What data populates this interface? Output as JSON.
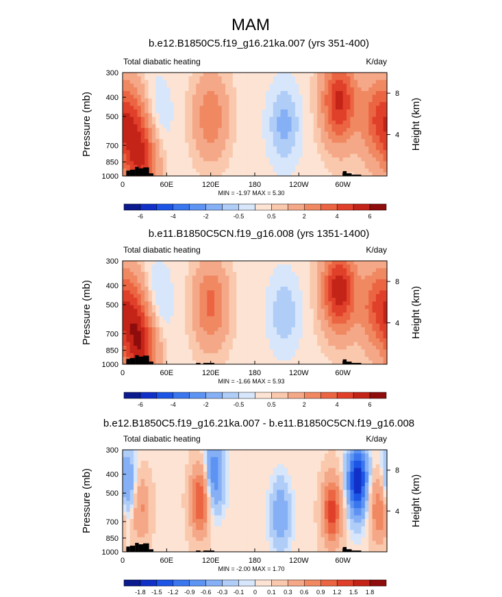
{
  "figure_title": "MAM",
  "chart_data": [
    {
      "type": "contour",
      "title": "b.e12.B1850C5.f19_g16.21ka.007 (yrs 351-400)",
      "left_label": "Total diabatic heating",
      "right_label": "K/day",
      "ylabel": "Pressure (mb)",
      "ylabel_right": "Height (km)",
      "x_ticks": [
        "0",
        "60E",
        "120E",
        "180",
        "120W",
        "60W"
      ],
      "x_tick_values": [
        0,
        60,
        120,
        180,
        240,
        300
      ],
      "xlim": [
        0,
        360
      ],
      "y_ticks": [
        "300",
        "400",
        "500",
        "700",
        "850",
        "1000"
      ],
      "y_tick_values": [
        300,
        400,
        500,
        700,
        850,
        1000
      ],
      "ylim": [
        1000,
        300
      ],
      "right_ticks": [
        "8",
        "4"
      ],
      "right_tick_values": [
        8,
        4
      ],
      "stats": "MIN = -1.97  MAX =  5.30",
      "colorbar_labels": [
        "-6",
        "-4",
        "-2",
        "-0.5",
        "0.5",
        "2",
        "4",
        "6"
      ],
      "colorbar_levels": 16,
      "colors": [
        "#0b1a8c",
        "#1030c8",
        "#1c55e6",
        "#3a76ee",
        "#5d93f2",
        "#86b0f5",
        "#b0cdf8",
        "#d7e6fb",
        "#fde3d3",
        "#f9c8ad",
        "#f5a888",
        "#f08862",
        "#ec6542",
        "#e0402a",
        "#c42418",
        "#8f0c0c"
      ],
      "features": [
        {
          "name": "Total diabatic heating core near 10E",
          "x": 10,
          "p": 520,
          "v": 3
        },
        {
          "name": "Total diabatic heating core near 25E",
          "x": 25,
          "p": 820,
          "v": 4.5
        },
        {
          "name": "Total diabatic heating cooling near 45E",
          "x": 45,
          "p": 500,
          "v": -1.0
        },
        {
          "name": "Total diabatic heating core near 120E",
          "x": 120,
          "p": 500,
          "v": 2.5
        },
        {
          "name": "Total diabatic heating cooling near 220E",
          "x": 220,
          "p": 550,
          "v": -1.5
        },
        {
          "name": "Total diabatic heating core near 295E",
          "x": 295,
          "p": 420,
          "v": 5
        },
        {
          "name": "Total diabatic heating core near 345E",
          "x": 345,
          "p": 520,
          "v": 3
        }
      ]
    },
    {
      "type": "contour",
      "title": "b.e11.B1850C5CN.f19_g16.008 (yrs 1351-1400)",
      "left_label": "Total diabatic heating",
      "right_label": "K/day",
      "ylabel": "Pressure (mb)",
      "ylabel_right": "Height (km)",
      "x_ticks": [
        "0",
        "60E",
        "120E",
        "180",
        "120W",
        "60W"
      ],
      "x_tick_values": [
        0,
        60,
        120,
        180,
        240,
        300
      ],
      "xlim": [
        0,
        360
      ],
      "y_ticks": [
        "300",
        "400",
        "500",
        "700",
        "850",
        "1000"
      ],
      "y_tick_values": [
        300,
        400,
        500,
        700,
        850,
        1000
      ],
      "ylim": [
        1000,
        300
      ],
      "right_ticks": [
        "8",
        "4"
      ],
      "right_tick_values": [
        8,
        4
      ],
      "stats": "MIN = -1.66  MAX =  5.93",
      "colorbar_labels": [
        "-6",
        "-4",
        "-2",
        "-0.5",
        "0.5",
        "2",
        "4",
        "6"
      ],
      "colorbar_levels": 16,
      "colors": [
        "#0b1a8c",
        "#1030c8",
        "#1c55e6",
        "#3a76ee",
        "#5d93f2",
        "#86b0f5",
        "#b0cdf8",
        "#d7e6fb",
        "#fde3d3",
        "#f9c8ad",
        "#f5a888",
        "#f08862",
        "#ec6542",
        "#e0402a",
        "#c42418",
        "#8f0c0c"
      ],
      "features": [
        {
          "name": "Total diabatic heating core near 10E",
          "x": 10,
          "p": 520,
          "v": 3
        },
        {
          "name": "Total diabatic heating core near 25E",
          "x": 25,
          "p": 820,
          "v": 5
        },
        {
          "name": "Total diabatic heating cooling near 45E",
          "x": 45,
          "p": 500,
          "v": -1.2
        },
        {
          "name": "Total diabatic heating core near 120E",
          "x": 120,
          "p": 500,
          "v": 3
        },
        {
          "name": "Total diabatic heating cooling near 220E",
          "x": 220,
          "p": 550,
          "v": -1.2
        },
        {
          "name": "Total diabatic heating core near 295E",
          "x": 295,
          "p": 420,
          "v": 5.5
        },
        {
          "name": "Total diabatic heating core near 345E",
          "x": 345,
          "p": 520,
          "v": 3
        }
      ]
    },
    {
      "type": "contour",
      "title": "b.e12.B1850C5.f19_g16.21ka.007 - b.e11.B1850C5CN.f19_g16.008",
      "left_label": "Total diabatic heating",
      "right_label": "K/day",
      "ylabel": "Pressure (mb)",
      "ylabel_right": "Height (km)",
      "x_ticks": [
        "0",
        "60E",
        "120E",
        "180",
        "120W",
        "60W"
      ],
      "x_tick_values": [
        0,
        60,
        120,
        180,
        240,
        300
      ],
      "xlim": [
        0,
        360
      ],
      "y_ticks": [
        "300",
        "400",
        "500",
        "700",
        "850",
        "1000"
      ],
      "y_tick_values": [
        300,
        400,
        500,
        700,
        850,
        1000
      ],
      "ylim": [
        1000,
        300
      ],
      "right_ticks": [
        "8",
        "4"
      ],
      "right_tick_values": [
        8,
        4
      ],
      "stats": "MIN = -2.00  MAX =  1.70",
      "colorbar_labels": [
        "-1.8",
        "-1.5",
        "-1.2",
        "-0.9",
        "-0.6",
        "-0.3",
        "-0.1",
        "0",
        "0.1",
        "0.3",
        "0.6",
        "0.9",
        "1.2",
        "1.5",
        "1.8"
      ],
      "colorbar_levels": 16,
      "colors": [
        "#0b1a8c",
        "#1030c8",
        "#1c55e6",
        "#3a76ee",
        "#5d93f2",
        "#86b0f5",
        "#b0cdf8",
        "#d7e6fb",
        "#fde3d3",
        "#f9c8ad",
        "#f5a888",
        "#f08862",
        "#ec6542",
        "#e0402a",
        "#c42418",
        "#8f0c0c"
      ],
      "features": [
        {
          "name": "Difference cooling near 5E",
          "x": 5,
          "p": 450,
          "v": -0.8
        },
        {
          "name": "Difference warming near 25E",
          "x": 25,
          "p": 600,
          "v": 0.6
        },
        {
          "name": "Difference warming near 105E",
          "x": 105,
          "p": 550,
          "v": 1.2
        },
        {
          "name": "Difference cooling near 125E",
          "x": 125,
          "p": 400,
          "v": -0.9
        },
        {
          "name": "Difference cooling near 215E",
          "x": 215,
          "p": 650,
          "v": -0.6
        },
        {
          "name": "Difference warming near 285E",
          "x": 285,
          "p": 620,
          "v": 1.3
        },
        {
          "name": "Difference cooling near 320E",
          "x": 320,
          "p": 430,
          "v": -1.9
        },
        {
          "name": "Difference warming near 350E",
          "x": 350,
          "p": 600,
          "v": 0.9
        }
      ]
    }
  ]
}
